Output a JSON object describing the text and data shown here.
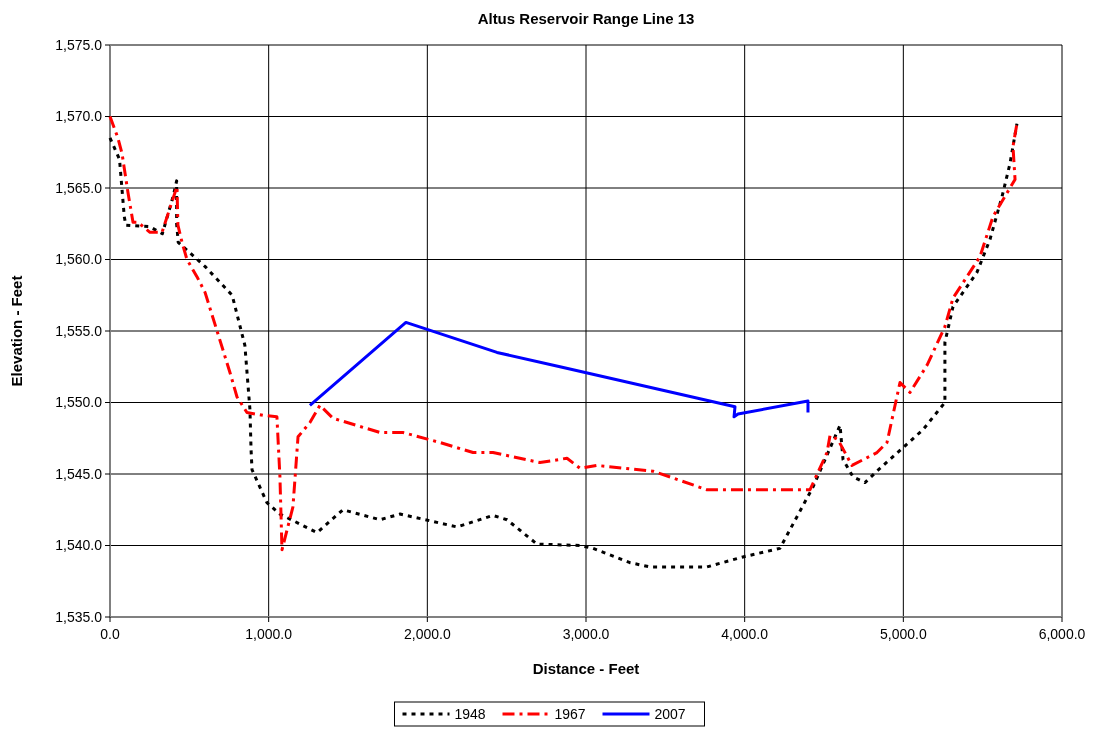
{
  "chart_data": {
    "type": "line",
    "title": "Altus Reservoir Range Line 13",
    "xlabel": "Distance - Feet",
    "ylabel": "Elevation - Feet",
    "xlim": [
      0,
      6000
    ],
    "ylim": [
      1535,
      1575
    ],
    "xticks": [
      {
        "value": 0,
        "label": "0.0"
      },
      {
        "value": 1000,
        "label": "1,000.0"
      },
      {
        "value": 2000,
        "label": "2,000.0"
      },
      {
        "value": 3000,
        "label": "3,000.0"
      },
      {
        "value": 4000,
        "label": "4,000.0"
      },
      {
        "value": 5000,
        "label": "5,000.0"
      },
      {
        "value": 6000,
        "label": "6,000.0"
      }
    ],
    "yticks": [
      {
        "value": 1535,
        "label": "1,535.0"
      },
      {
        "value": 1540,
        "label": "1,540.0"
      },
      {
        "value": 1545,
        "label": "1,545.0"
      },
      {
        "value": 1550,
        "label": "1,550.0"
      },
      {
        "value": 1555,
        "label": "1,555.0"
      },
      {
        "value": 1560,
        "label": "1,560.0"
      },
      {
        "value": 1565,
        "label": "1,565.0"
      },
      {
        "value": 1570,
        "label": "1,570.0"
      },
      {
        "value": 1575,
        "label": "1,575.0"
      }
    ],
    "grid": true,
    "legend": "bottom",
    "marker": "none",
    "series": [
      {
        "name": "1948",
        "color": "#000000",
        "line_style": "dotted",
        "x": [
          0,
          60,
          90,
          100,
          250,
          330,
          400,
          420,
          420,
          430,
          600,
          770,
          850,
          882,
          889,
          895,
          989,
          1071,
          1305,
          1468,
          1702,
          1828,
          2187,
          2414,
          2502,
          2691,
          2962,
          3044,
          3277,
          3403,
          3655,
          3762,
          3989,
          4222,
          4431,
          4601,
          4620,
          4683,
          4758,
          4853,
          5124,
          5262,
          5262,
          5313,
          5464,
          5546,
          5622,
          5672,
          5716
        ],
        "values": [
          1568.5,
          1567,
          1563,
          1562.4,
          1562.3,
          1561.8,
          1564.5,
          1565.5,
          1562.5,
          1561.2,
          1559.5,
          1557.5,
          1554,
          1549.5,
          1546.7,
          1545.3,
          1543,
          1542.2,
          1540.9,
          1542.5,
          1541.8,
          1542.2,
          1541.3,
          1542.1,
          1541.8,
          1540.1,
          1540,
          1539.8,
          1538.8,
          1538.5,
          1538.5,
          1538.5,
          1539.2,
          1539.8,
          1544.1,
          1548.4,
          1546,
          1544.8,
          1544.4,
          1545.4,
          1548.1,
          1550,
          1554.2,
          1556.7,
          1559.1,
          1561.4,
          1564.4,
          1566.7,
          1569.5
        ]
      },
      {
        "name": "1967",
        "color": "#ff0000",
        "line_style": "dashed",
        "x": [
          0,
          50,
          76,
          113,
          145,
          176,
          252,
          328,
          422,
          428,
          454,
          485,
          548,
          599,
          756,
          800,
          863,
          964,
          1052,
          1071,
          1084,
          1153,
          1185,
          1260,
          1323,
          1405,
          1702,
          1847,
          2080,
          2288,
          2414,
          2710,
          2880,
          2962,
          3069,
          3422,
          3762,
          4412,
          4519,
          4538,
          4588,
          4676,
          4834,
          4897,
          4979,
          5042,
          5149,
          5262,
          5313,
          5483,
          5565,
          5704,
          5691,
          5716
        ],
        "values": [
          1570,
          1568.5,
          1567.4,
          1564.7,
          1562.6,
          1562.6,
          1561.9,
          1561.9,
          1565.1,
          1562.4,
          1561.2,
          1560,
          1558.8,
          1557.7,
          1552.1,
          1550.4,
          1549.3,
          1549.1,
          1549,
          1544.8,
          1539.7,
          1542.7,
          1547.6,
          1548.6,
          1549.8,
          1548.9,
          1547.9,
          1547.9,
          1547.2,
          1546.5,
          1546.5,
          1545.8,
          1546.1,
          1545.4,
          1545.6,
          1545.2,
          1543.9,
          1543.9,
          1546.5,
          1547.7,
          1547.4,
          1545.6,
          1546.5,
          1547.2,
          1551.4,
          1550.7,
          1552.6,
          1555.3,
          1557.3,
          1560.2,
          1563,
          1565.6,
          1567.9,
          1569.5
        ]
      },
      {
        "name": "2007",
        "color": "#0000ff",
        "line_style": "solid",
        "x": [
          1260,
          1865,
          2439,
          2836,
          3939,
          3933,
          3958,
          4399,
          4399
        ],
        "values": [
          1549.8,
          1555.6,
          1553.5,
          1552.5,
          1549.7,
          1549,
          1549.2,
          1550.1,
          1549.3
        ]
      }
    ]
  }
}
